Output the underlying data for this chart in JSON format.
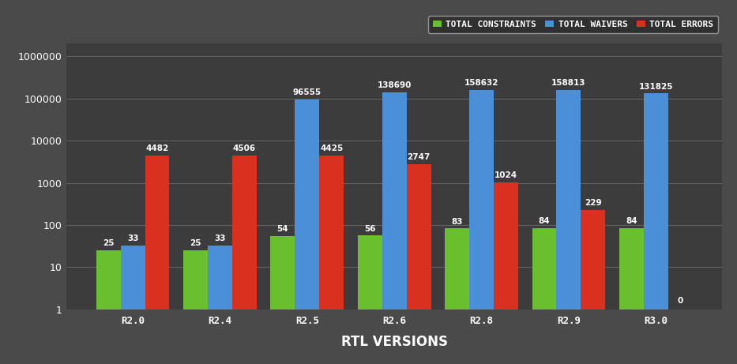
{
  "categories": [
    "R2.0",
    "R2.4",
    "R2.5",
    "R2.6",
    "R2.8",
    "R2.9",
    "R3.0"
  ],
  "total_constraints": [
    25,
    25,
    54,
    56,
    83,
    84,
    84
  ],
  "total_waivers": [
    33,
    33,
    96555,
    138690,
    158632,
    158813,
    131825
  ],
  "total_errors": [
    4482,
    4506,
    4425,
    2747,
    1024,
    229,
    0
  ],
  "bar_colors": {
    "constraints": "#6abf2e",
    "waivers": "#4a90d9",
    "errors": "#d93020"
  },
  "background_color": "#4a4a4a",
  "plot_bg_color": "#3c3c3c",
  "grid_color": "#6a6a6a",
  "text_color": "#ffffff",
  "xlabel": "RTL VERSIONS",
  "legend_labels": [
    "TOTAL CONSTRAINTS",
    "TOTAL WAIVERS",
    "TOTAL ERRORS"
  ],
  "ylim": [
    1,
    2000000
  ],
  "bar_width": 0.28,
  "annotation_fontsize": 7.5,
  "axis_label_fontsize": 12,
  "tick_fontsize": 9,
  "legend_fontsize": 8
}
